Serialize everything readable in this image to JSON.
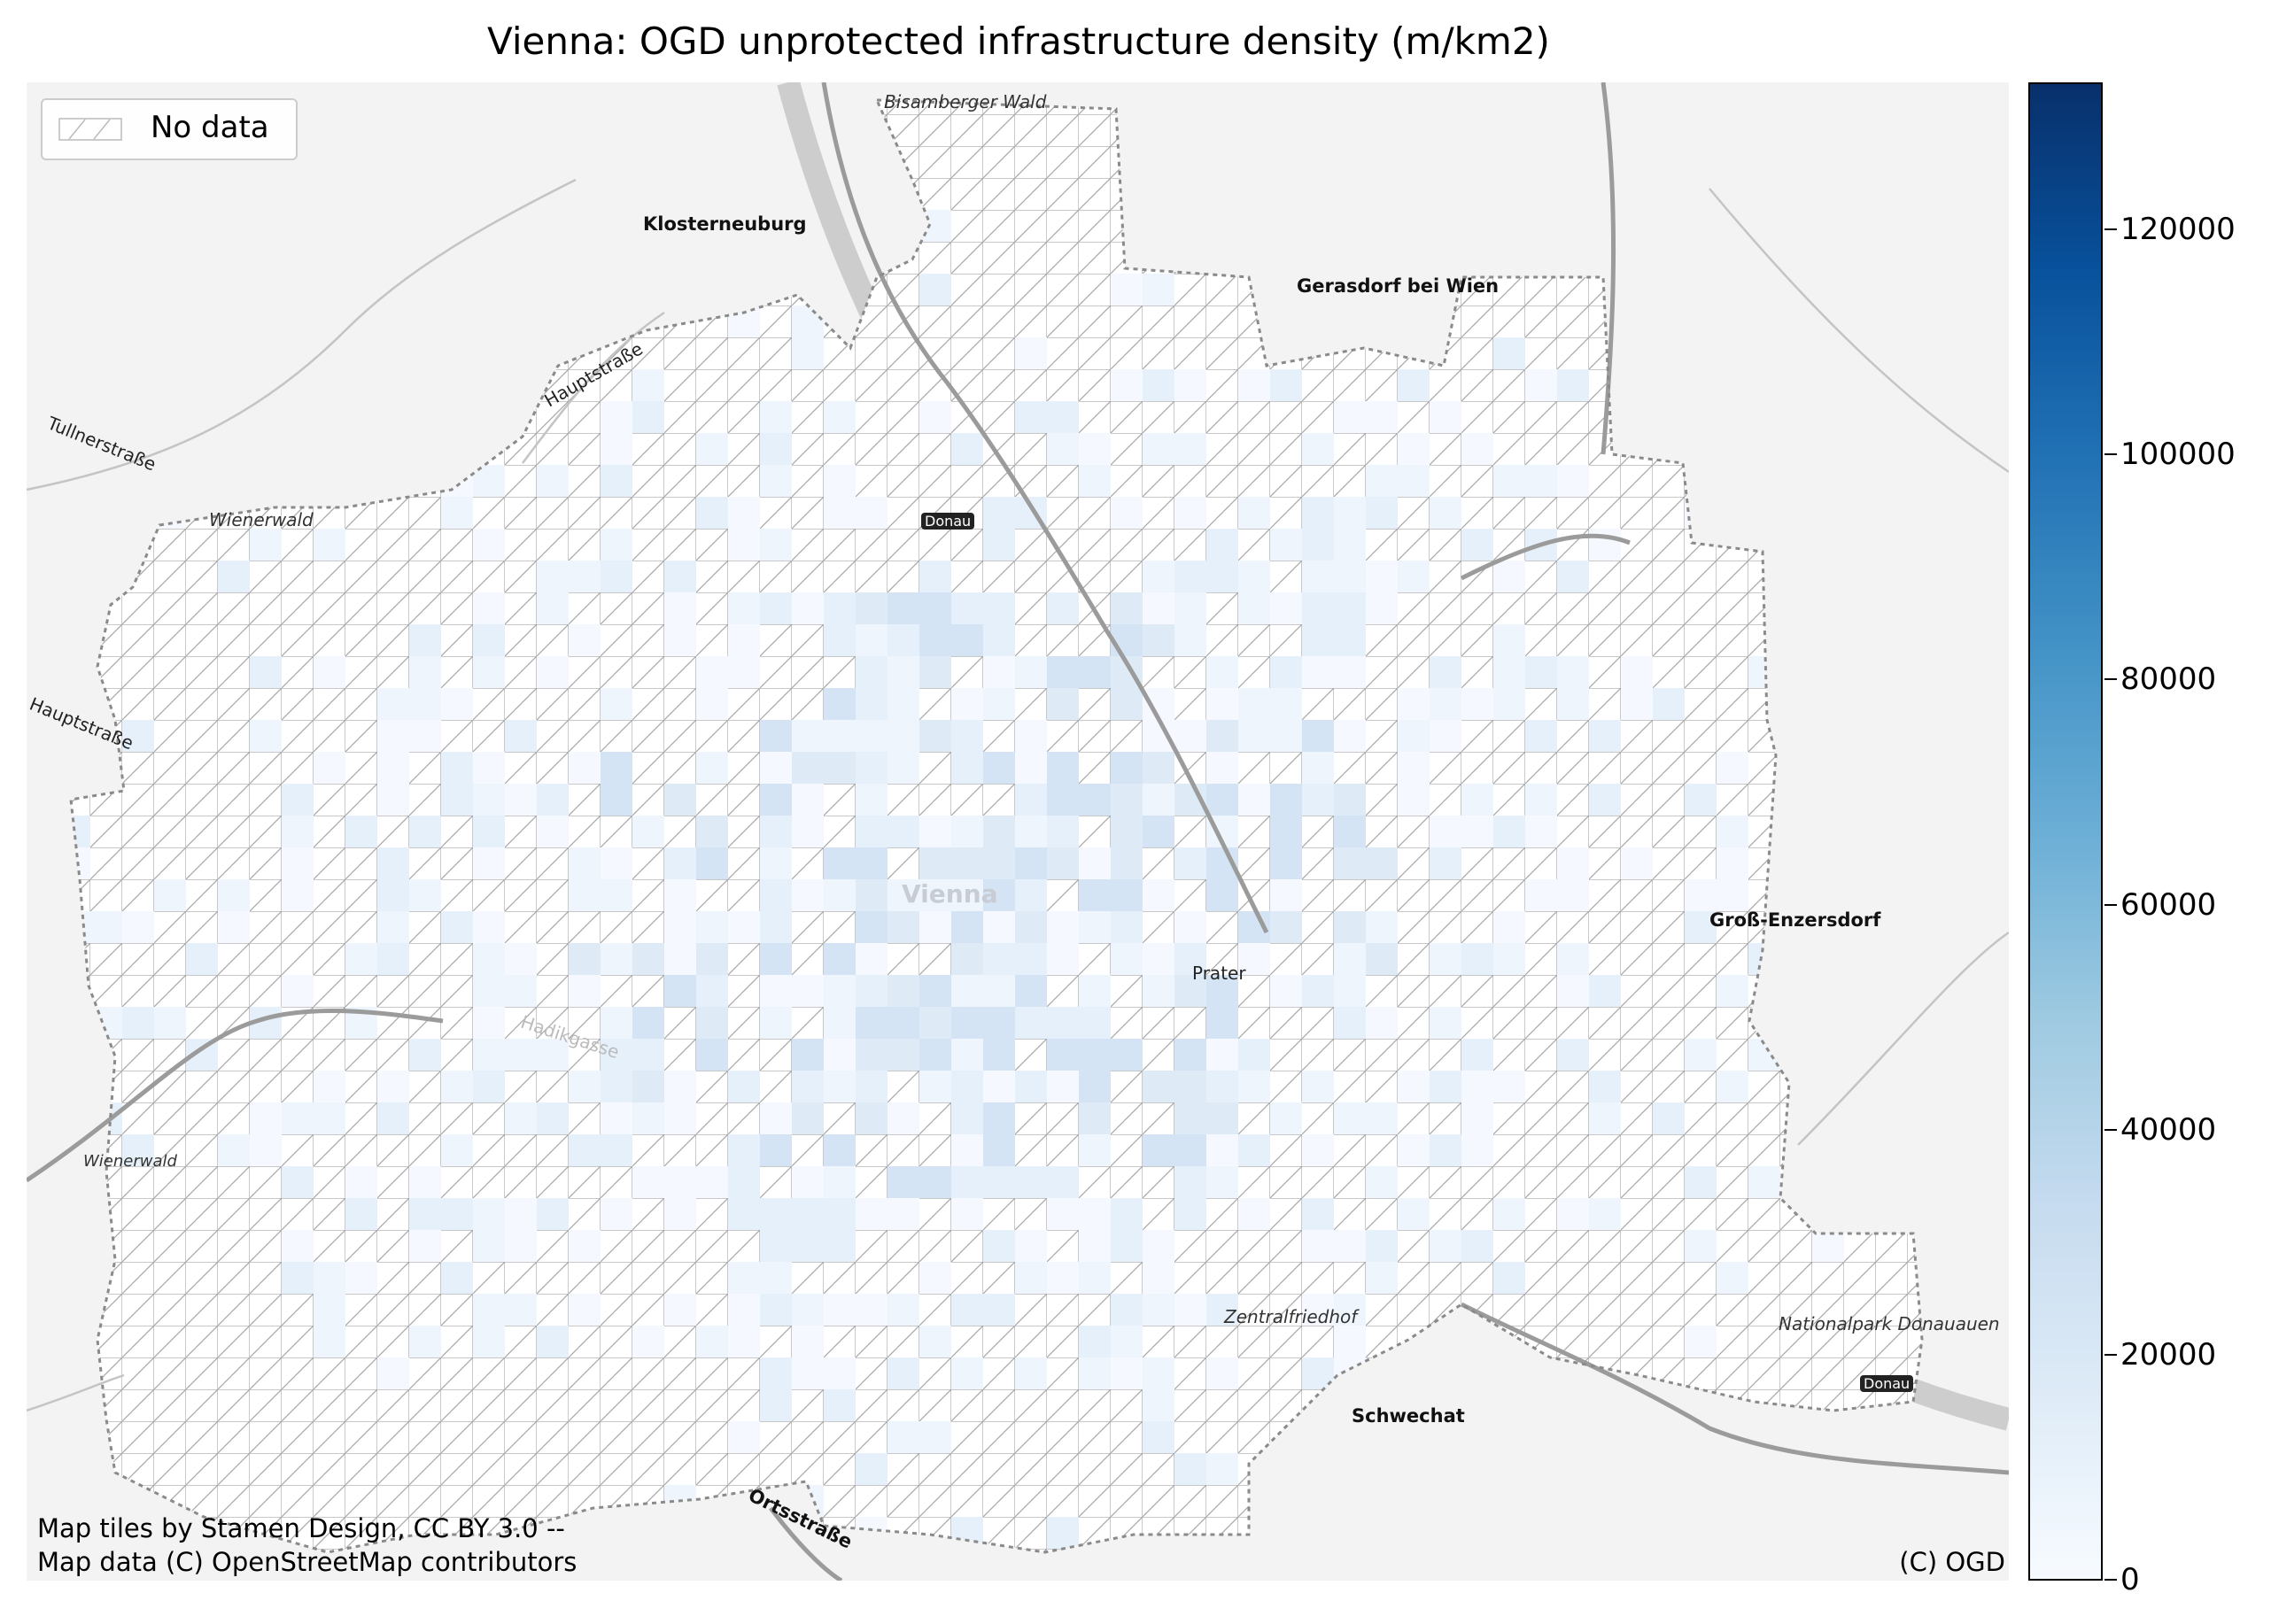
{
  "chart_data": {
    "type": "heatmap",
    "title": "Vienna: OGD unprotected infrastructure density (m/km2)",
    "legend": {
      "entries": [
        "No data"
      ],
      "placement": "top-left"
    },
    "colorbar": {
      "ticks": [
        0,
        20000,
        40000,
        60000,
        80000,
        100000,
        120000
      ],
      "tick_labels": [
        "0",
        "20000",
        "40000",
        "60000",
        "80000",
        "100000",
        "120000"
      ],
      "range": [
        0,
        133000
      ],
      "colormap": "Blues",
      "colors": [
        "#f7fbff",
        "#deebf7",
        "#c6dbef",
        "#9ecae1",
        "#6baed6",
        "#4292c6",
        "#2171b5",
        "#08519c",
        "#08306b"
      ]
    },
    "attribution_left": [
      "Map tiles by Stamen Design, CC BY 3.0 --",
      "Map data (C) OpenStreetMap contributors"
    ],
    "attribution_right": "(C) OGD",
    "place_labels": [
      "Bisamberger Wald",
      "Klosterneuburg",
      "Gerasdorf bei Wien",
      "Hauptstraße",
      "Tullnerstraße",
      "Wienerwald",
      "Donau",
      "Hauptstraße",
      "Vienna",
      "Groß-Enzersdorf",
      "Prater",
      "Hadikgasse",
      "Wienerwald",
      "Zentralfriedhof",
      "Schwechat",
      "Nationalpark Donauauen",
      "Donau",
      "Ortsstraße"
    ]
  },
  "colors": {
    "nodata_fill": "#ffffff",
    "nodata_hatch": "#9a9a9a",
    "basemap": "#f3f3f3",
    "river": "#c8c8c8",
    "roads": "#9b9b9b",
    "boundary": "#8a8a8a"
  }
}
